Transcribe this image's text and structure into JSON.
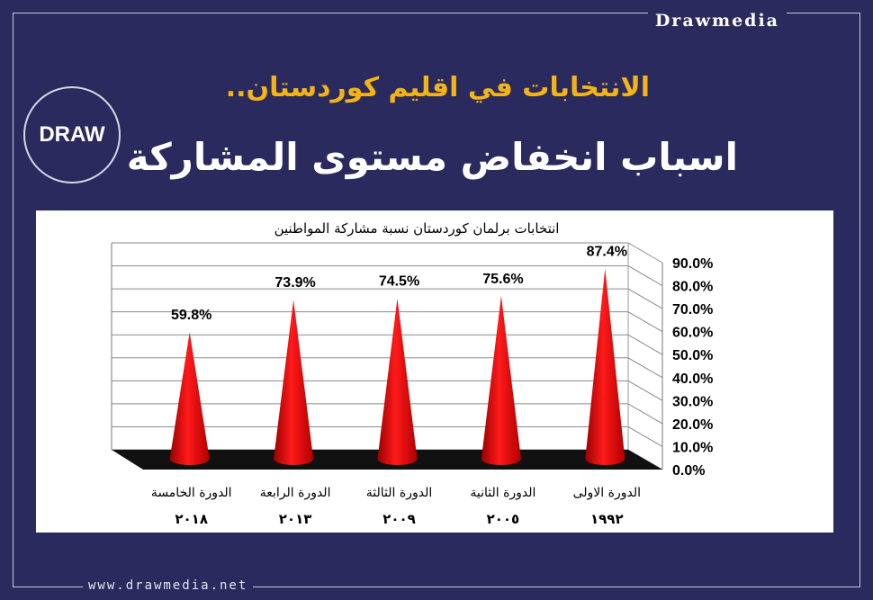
{
  "brand": {
    "name": "Drawmedia",
    "url": "www.drawmedia.net",
    "logo_text": "DRAW"
  },
  "header": {
    "title": "الانتخابات في اقليم كوردستان..",
    "subtitle": "اسباب انخفاض مستوى المشاركة"
  },
  "colors": {
    "background": "#2a2a5e",
    "title": "#f2b417",
    "cone": "#e00000",
    "floor": "#111111"
  },
  "chart_data": {
    "type": "bar",
    "shape": "cone",
    "title": "انتخابات برلمان كوردستان نسبة مشاركة المواطنين",
    "categories": [
      "الدورة الخامسة",
      "الدورة الرابعة",
      "الدورة الثالثة",
      "الدورة الثانية",
      "الدورة الاولى"
    ],
    "years": [
      "٢٠١٨",
      "٢٠١٣",
      "٢٠٠٩",
      "٢٠٠٥",
      "١٩٩٢"
    ],
    "values": [
      59.8,
      73.9,
      74.5,
      75.6,
      87.4
    ],
    "value_labels": [
      "59.8%",
      "73.9%",
      "74.5%",
      "75.6%",
      "87.4%"
    ],
    "ylim": [
      0,
      90
    ],
    "yticks": [
      "0.0%",
      "10.0%",
      "20.0%",
      "30.0%",
      "40.0%",
      "50.0%",
      "60.0%",
      "70.0%",
      "80.0%",
      "90.0%"
    ],
    "grid": true,
    "axis_position": "right"
  }
}
